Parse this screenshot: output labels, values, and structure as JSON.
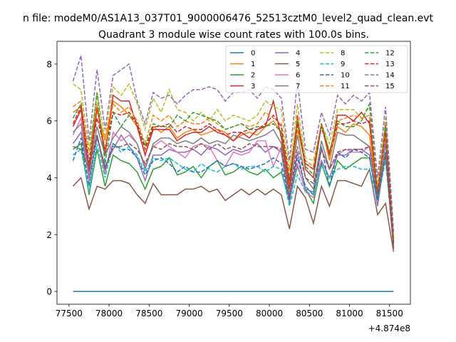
{
  "chart_data": {
    "type": "line",
    "suptitle": "n file: modeM0/AS1A13_037T01_9000006476_52513cztM0_level2_quad_clean.evt",
    "title": "Quadrant 3 module wise count rates with 100.0s bins.",
    "x_offset_label": "+4.874e8",
    "xlim": [
      77350,
      81760
    ],
    "ylim": [
      -0.45,
      8.8
    ],
    "xticks": [
      77500,
      78000,
      78500,
      79000,
      79500,
      80000,
      80500,
      81000,
      81500
    ],
    "yticks": [
      0,
      2,
      4,
      6,
      8
    ],
    "grid": false,
    "legend_position": "top-right",
    "legend_columns": 4,
    "x": [
      77550,
      77650,
      77750,
      77850,
      77950,
      78050,
      78150,
      78250,
      78350,
      78450,
      78550,
      78650,
      78750,
      78850,
      78950,
      79050,
      79150,
      79250,
      79350,
      79450,
      79550,
      79650,
      79750,
      79850,
      79950,
      80050,
      80150,
      80250,
      80350,
      80450,
      80550,
      80650,
      80750,
      80850,
      80950,
      81050,
      81150,
      81250,
      81350,
      81450,
      81550
    ],
    "series": [
      {
        "name": "0",
        "color": "#1f77b4",
        "dash": "solid",
        "values": [
          0,
          0,
          0,
          0,
          0,
          0,
          0,
          0,
          0,
          0,
          0,
          0,
          0,
          0,
          0,
          0,
          0,
          0,
          0,
          0,
          0,
          0,
          0,
          0,
          0,
          0,
          0,
          0,
          0,
          0,
          0,
          0,
          0,
          0,
          0,
          0,
          0,
          0,
          0,
          0,
          0
        ]
      },
      {
        "name": "1",
        "color": "#ff7f0e",
        "dash": "solid",
        "values": [
          6.3,
          6.5,
          4.0,
          6.4,
          5.3,
          6.7,
          6.5,
          6.2,
          5.8,
          4.8,
          5.8,
          5.6,
          5.8,
          5.4,
          5.6,
          5.7,
          5.5,
          5.6,
          5.7,
          5.6,
          5.3,
          5.5,
          5.6,
          5.5,
          5.8,
          6.0,
          5.6,
          3.8,
          5.7,
          4.5,
          4.3,
          5.9,
          4.6,
          5.8,
          5.6,
          5.9,
          5.8,
          5.5,
          3.3,
          5.5,
          1.8
        ]
      },
      {
        "name": "2",
        "color": "#2ca02c",
        "dash": "solid",
        "values": [
          5.0,
          5.2,
          3.4,
          5.0,
          3.7,
          4.8,
          4.6,
          4.5,
          4.2,
          3.6,
          4.3,
          4.4,
          4.7,
          4.1,
          4.2,
          4.4,
          4.0,
          4.4,
          4.6,
          4.1,
          4.2,
          4.4,
          4.2,
          4.1,
          4.3,
          4.0,
          4.2,
          3.2,
          4.4,
          3.6,
          3.1,
          4.5,
          3.7,
          4.6,
          4.3,
          4.5,
          4.7,
          4.7,
          3.2,
          4.8,
          1.5
        ]
      },
      {
        "name": "3",
        "color": "#d62728",
        "dash": "solid",
        "values": [
          5.8,
          6.4,
          4.3,
          6.5,
          4.8,
          6.9,
          6.7,
          6.7,
          5.8,
          4.8,
          5.7,
          5.7,
          5.7,
          5.3,
          5.5,
          5.6,
          5.6,
          5.8,
          5.6,
          5.5,
          5.3,
          5.6,
          5.4,
          5.7,
          5.8,
          6.7,
          5.4,
          3.6,
          6.2,
          4.3,
          4.0,
          5.9,
          4.8,
          6.2,
          6.2,
          6.0,
          6.3,
          5.9,
          3.5,
          5.9,
          1.7
        ]
      },
      {
        "name": "4",
        "color": "#9467bd",
        "dash": "solid",
        "values": [
          5.2,
          5.6,
          4.0,
          5.4,
          4.4,
          5.0,
          5.5,
          5.1,
          4.7,
          3.9,
          4.8,
          4.8,
          5.0,
          4.9,
          4.9,
          5.0,
          4.8,
          5.1,
          5.0,
          4.8,
          5.0,
          4.9,
          5.0,
          5.2,
          4.9,
          5.1,
          4.9,
          3.1,
          4.9,
          3.6,
          3.5,
          4.6,
          4.0,
          4.8,
          4.8,
          5.0,
          5.0,
          4.8,
          3.0,
          4.9,
          1.6
        ]
      },
      {
        "name": "5",
        "color": "#8c564b",
        "dash": "solid",
        "values": [
          3.7,
          4.0,
          2.9,
          3.7,
          3.6,
          3.9,
          3.9,
          3.8,
          3.4,
          3.1,
          3.8,
          3.4,
          3.4,
          3.4,
          3.6,
          3.6,
          3.7,
          3.5,
          3.6,
          3.2,
          3.4,
          3.6,
          3.4,
          3.6,
          3.4,
          3.6,
          3.4,
          2.2,
          3.7,
          3.3,
          2.4,
          3.7,
          3.0,
          3.9,
          3.9,
          3.8,
          3.7,
          4.3,
          2.7,
          3.1,
          1.4
        ]
      },
      {
        "name": "6",
        "color": "#e377c2",
        "dash": "solid",
        "values": [
          5.5,
          6.1,
          3.8,
          5.5,
          4.1,
          5.6,
          5.3,
          5.5,
          5.2,
          4.4,
          5.1,
          5.3,
          5.1,
          4.9,
          4.7,
          5.1,
          5.2,
          5.1,
          4.6,
          4.4,
          4.9,
          4.8,
          4.9,
          5.3,
          5.3,
          4.4,
          5.1,
          3.2,
          4.5,
          3.5,
          3.3,
          5.0,
          4.3,
          4.8,
          5.0,
          4.9,
          4.9,
          5.1,
          3.4,
          5.3,
          1.6
        ]
      },
      {
        "name": "7",
        "color": "#7f7f7f",
        "dash": "solid",
        "values": [
          5.6,
          5.9,
          4.2,
          5.8,
          4.8,
          5.4,
          5.8,
          5.6,
          5.2,
          4.3,
          5.2,
          5.4,
          5.4,
          5.2,
          5.3,
          5.2,
          5.4,
          5.2,
          5.3,
          5.2,
          5.5,
          5.4,
          5.3,
          5.4,
          5.5,
          5.7,
          5.2,
          3.4,
          5.5,
          4.0,
          3.6,
          5.3,
          4.3,
          5.6,
          5.5,
          5.5,
          5.3,
          5.1,
          3.3,
          5.2,
          1.6
        ]
      },
      {
        "name": "8",
        "color": "#bcbd22",
        "dash": "dashed",
        "values": [
          7.3,
          7.1,
          5.0,
          7.0,
          5.4,
          7.2,
          6.9,
          7.3,
          6.6,
          5.7,
          6.8,
          6.3,
          7.1,
          6.4,
          6.3,
          6.0,
          6.3,
          6.0,
          6.4,
          6.0,
          6.2,
          6.1,
          6.0,
          6.2,
          6.7,
          6.5,
          6.4,
          4.3,
          6.6,
          4.7,
          4.6,
          5.9,
          5.2,
          6.4,
          6.4,
          6.4,
          6.1,
          6.5,
          3.7,
          6.1,
          2.0
        ]
      },
      {
        "name": "9",
        "color": "#17becf",
        "dash": "dashed",
        "values": [
          4.8,
          5.0,
          3.5,
          5.2,
          4.0,
          5.2,
          4.9,
          5.1,
          4.8,
          4.2,
          4.7,
          4.6,
          4.7,
          4.5,
          4.3,
          4.2,
          4.5,
          4.3,
          4.2,
          4.4,
          4.5,
          4.3,
          4.4,
          4.4,
          4.2,
          4.4,
          4.3,
          3.0,
          4.1,
          3.5,
          3.4,
          4.4,
          4.0,
          4.3,
          4.4,
          4.4,
          4.3,
          4.3,
          3.2,
          4.6,
          1.7
        ]
      },
      {
        "name": "10",
        "color": "#1f77b4",
        "dash": "dashed",
        "values": [
          4.6,
          5.4,
          3.7,
          5.5,
          4.3,
          5.2,
          5.0,
          5.0,
          4.7,
          4.1,
          4.6,
          4.7,
          4.5,
          4.2,
          4.4,
          4.2,
          4.2,
          4.4,
          4.6,
          4.4,
          4.5,
          4.4,
          4.3,
          4.4,
          4.5,
          4.7,
          4.5,
          3.2,
          4.7,
          3.7,
          3.4,
          5.1,
          3.7,
          4.9,
          4.7,
          5.0,
          4.9,
          4.7,
          3.2,
          4.9,
          1.7
        ]
      },
      {
        "name": "11",
        "color": "#ff7f0e",
        "dash": "dashed",
        "values": [
          6.5,
          6.7,
          4.8,
          6.6,
          5.0,
          6.6,
          6.3,
          6.5,
          6.0,
          5.2,
          6.2,
          6.0,
          6.2,
          5.8,
          6.0,
          5.9,
          5.9,
          6.1,
          5.9,
          5.7,
          5.8,
          5.9,
          5.8,
          5.9,
          6.3,
          6.1,
          5.9,
          4.1,
          6.1,
          4.6,
          4.4,
          5.9,
          4.9,
          6.0,
          6.1,
          6.2,
          6.1,
          6.2,
          3.5,
          5.8,
          1.8
        ]
      },
      {
        "name": "12",
        "color": "#2ca02c",
        "dash": "dashed",
        "values": [
          6.1,
          6.6,
          4.5,
          7.0,
          4.5,
          6.3,
          5.8,
          6.2,
          5.9,
          5.1,
          5.9,
          5.8,
          5.8,
          6.2,
          6.0,
          6.3,
          6.2,
          6.1,
          6.0,
          5.7,
          5.8,
          5.9,
          5.7,
          5.8,
          5.8,
          5.9,
          5.6,
          3.9,
          6.0,
          4.4,
          4.1,
          5.9,
          4.9,
          6.0,
          5.8,
          5.8,
          6.0,
          6.6,
          3.4,
          5.8,
          1.8
        ]
      },
      {
        "name": "13",
        "color": "#d62728",
        "dash": "dashed",
        "values": [
          5.9,
          6.5,
          4.5,
          6.1,
          5.0,
          6.3,
          6.2,
          6.3,
          5.9,
          5.0,
          5.8,
          5.8,
          5.9,
          5.6,
          5.8,
          5.7,
          5.7,
          5.9,
          5.7,
          5.5,
          5.6,
          5.6,
          5.7,
          5.7,
          5.9,
          6.2,
          5.8,
          3.9,
          5.9,
          4.5,
          4.3,
          5.8,
          4.8,
          5.9,
          5.9,
          6.0,
          5.9,
          6.0,
          3.5,
          5.6,
          1.7
        ]
      },
      {
        "name": "14",
        "color": "#9467bd",
        "dash": "dashed",
        "values": [
          7.4,
          8.3,
          5.3,
          7.8,
          5.7,
          7.6,
          7.8,
          8.0,
          6.7,
          5.9,
          7.0,
          6.8,
          6.9,
          6.6,
          6.9,
          7.1,
          7.1,
          7.2,
          7.1,
          6.7,
          7.0,
          7.0,
          7.1,
          6.8,
          7.2,
          7.1,
          6.8,
          4.6,
          7.4,
          5.0,
          4.9,
          6.3,
          5.5,
          6.9,
          6.6,
          6.9,
          6.7,
          7.0,
          4.0,
          6.5,
          2.1
        ]
      },
      {
        "name": "15",
        "color": "#8c564b",
        "dash": "dashed",
        "values": [
          5.1,
          5.0,
          4.3,
          5.5,
          4.3,
          5.1,
          5.1,
          5.2,
          5.0,
          4.5,
          5.1,
          5.0,
          5.2,
          5.1,
          5.1,
          5.0,
          5.2,
          5.0,
          5.2,
          5.0,
          5.1,
          5.0,
          5.2,
          5.1,
          5.1,
          5.1,
          5.0,
          3.3,
          5.1,
          4.0,
          3.8,
          5.0,
          4.3,
          4.9,
          5.0,
          5.0,
          5.0,
          5.1,
          3.4,
          4.8,
          1.5
        ]
      }
    ]
  }
}
